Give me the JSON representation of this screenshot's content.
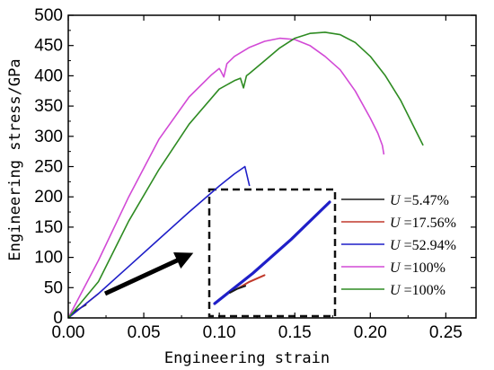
{
  "chart_data": {
    "type": "line",
    "xlabel": "Engineering strain",
    "ylabel": "Engineering stress/GPa",
    "xlim": [
      0,
      0.27
    ],
    "ylim": [
      0,
      500
    ],
    "xticks": [
      "0.00",
      "0.05",
      "0.10",
      "0.15",
      "0.20",
      "0.25"
    ],
    "yticks": [
      "0",
      "50",
      "100",
      "150",
      "200",
      "250",
      "300",
      "350",
      "400",
      "450",
      "500"
    ],
    "legend_position": "lower-right",
    "series": [
      {
        "name": "U =5.47%",
        "symbol": "U",
        "value_text": " =5.47%",
        "color": "#1a1a1a",
        "x": [
          0.0,
          0.005,
          0.012
        ],
        "y": [
          0,
          12,
          22
        ]
      },
      {
        "name": "U =17.56%",
        "symbol": "U",
        "value_text": " =17.56%",
        "color": "#c0392b",
        "x": [
          0.0,
          0.01,
          0.02
        ],
        "y": [
          0,
          20,
          40
        ]
      },
      {
        "name": "U =52.94%",
        "symbol": "U",
        "value_text": " =52.94%",
        "color": "#1f1fc8",
        "x": [
          0.0,
          0.02,
          0.04,
          0.06,
          0.08,
          0.1,
          0.11,
          0.117,
          0.12
        ],
        "y": [
          0,
          40,
          85,
          130,
          175,
          218,
          238,
          250,
          218
        ]
      },
      {
        "name": "U =100%",
        "symbol": "U",
        "value_text": " =100%",
        "color": "#d24ad6",
        "x": [
          0.0,
          0.02,
          0.04,
          0.06,
          0.08,
          0.095,
          0.1,
          0.101,
          0.103,
          0.105,
          0.11,
          0.12,
          0.13,
          0.14,
          0.15,
          0.16,
          0.17,
          0.18,
          0.19,
          0.2,
          0.205,
          0.208,
          0.209
        ],
        "y": [
          0,
          95,
          200,
          295,
          365,
          402,
          412,
          408,
          398,
          420,
          432,
          447,
          457,
          462,
          460,
          450,
          432,
          410,
          375,
          330,
          305,
          285,
          270
        ]
      },
      {
        "name": "U =100%",
        "symbol": "U",
        "value_text": " =100%",
        "color": "#2e8b22",
        "x": [
          0.0,
          0.02,
          0.04,
          0.06,
          0.08,
          0.1,
          0.11,
          0.114,
          0.116,
          0.118,
          0.12,
          0.13,
          0.14,
          0.15,
          0.16,
          0.17,
          0.18,
          0.19,
          0.2,
          0.21,
          0.22,
          0.23,
          0.235
        ],
        "y": [
          0,
          60,
          160,
          245,
          320,
          378,
          392,
          396,
          380,
          400,
          404,
          425,
          446,
          462,
          470,
          472,
          468,
          455,
          432,
          400,
          360,
          310,
          285
        ]
      }
    ],
    "inset": {
      "x_range": [
        0.0,
        0.06
      ],
      "y_range": [
        0,
        150
      ],
      "description_lines": [
        "U =5.47%",
        "U =17.56%",
        "U =52.94%"
      ]
    }
  }
}
